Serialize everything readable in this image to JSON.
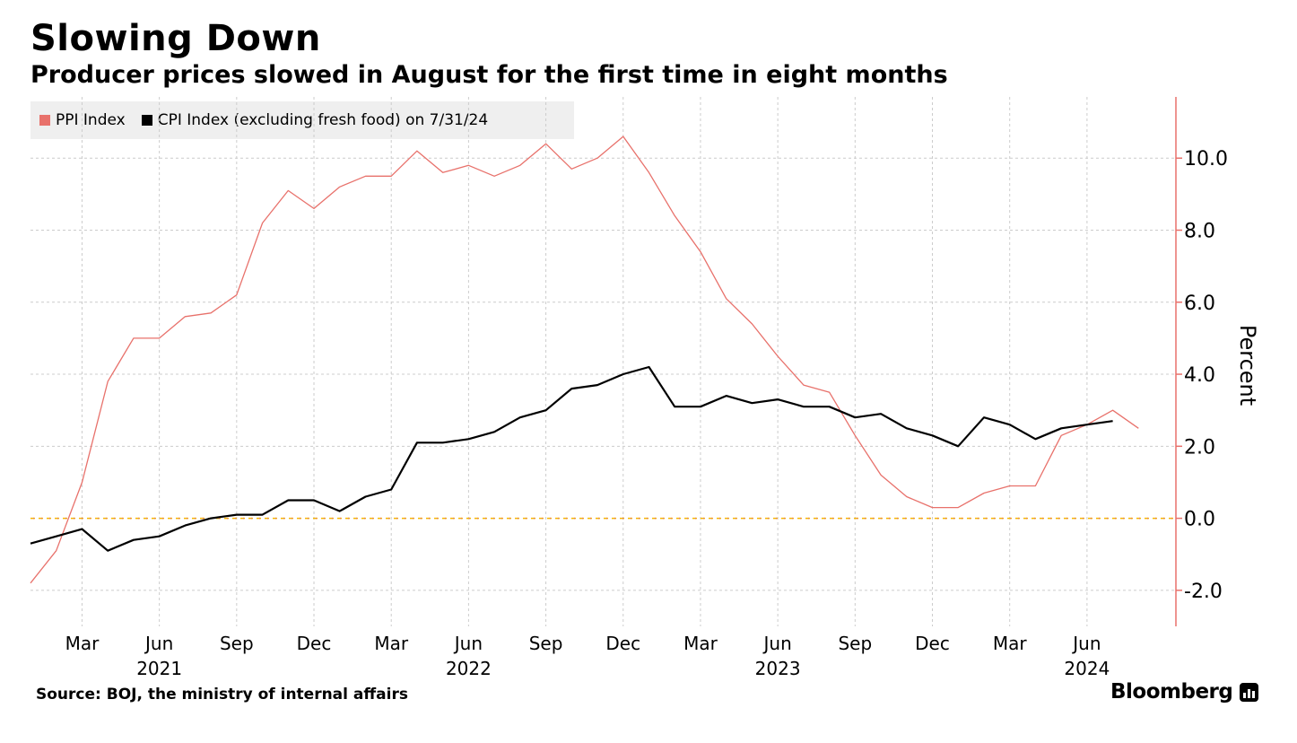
{
  "header": {
    "title": "Slowing Down",
    "subtitle": "Producer prices slowed in August for the first time in eight months"
  },
  "legend": {
    "items": [
      {
        "label": "PPI Index",
        "color": "#e8716b"
      },
      {
        "label": "CPI Index (excluding fresh food) on 7/31/24",
        "color": "#000000"
      }
    ]
  },
  "footer": {
    "source": "Source: BOJ, the ministry of internal affairs",
    "brand": "Bloomberg",
    "brand_icon": "bloomberg-terminal-icon"
  },
  "colors": {
    "ppi": "#e8716b",
    "cpi": "#000000",
    "axis": "#e8716b",
    "zero_line": "#f5b800",
    "grid": "#cccccc"
  },
  "chart_data": {
    "type": "line",
    "ylabel": "Percent",
    "ylim": [
      -3.0,
      11.7
    ],
    "yticks": [
      "10.0",
      "8.0",
      "6.0",
      "4.0",
      "2.0",
      "0.0",
      "-2.0"
    ],
    "ytick_values": [
      10,
      8,
      6,
      4,
      2,
      0,
      -2
    ],
    "y_axis_side": "right",
    "grid": true,
    "legend_position": "top-left",
    "x_start": "2021-01",
    "x_end": "2024-09",
    "x_tick_labels": [
      {
        "label": "Mar",
        "month": "2021-03"
      },
      {
        "label": "Jun",
        "month": "2021-06"
      },
      {
        "label": "Sep",
        "month": "2021-09"
      },
      {
        "label": "Dec",
        "month": "2021-12"
      },
      {
        "label": "Mar",
        "month": "2022-03"
      },
      {
        "label": "Jun",
        "month": "2022-06"
      },
      {
        "label": "Sep",
        "month": "2022-09"
      },
      {
        "label": "Dec",
        "month": "2022-12"
      },
      {
        "label": "Mar",
        "month": "2023-03"
      },
      {
        "label": "Jun",
        "month": "2023-06"
      },
      {
        "label": "Sep",
        "month": "2023-09"
      },
      {
        "label": "Dec",
        "month": "2023-12"
      },
      {
        "label": "Mar",
        "month": "2024-03"
      },
      {
        "label": "Jun",
        "month": "2024-06"
      }
    ],
    "year_labels": [
      {
        "label": "2021",
        "month": "2021-06"
      },
      {
        "label": "2022",
        "month": "2022-06"
      },
      {
        "label": "2023",
        "month": "2023-06"
      },
      {
        "label": "2024",
        "month": "2024-06"
      }
    ],
    "x": [
      "2021-01",
      "2021-02",
      "2021-03",
      "2021-04",
      "2021-05",
      "2021-06",
      "2021-07",
      "2021-08",
      "2021-09",
      "2021-10",
      "2021-11",
      "2021-12",
      "2022-01",
      "2022-02",
      "2022-03",
      "2022-04",
      "2022-05",
      "2022-06",
      "2022-07",
      "2022-08",
      "2022-09",
      "2022-10",
      "2022-11",
      "2022-12",
      "2023-01",
      "2023-02",
      "2023-03",
      "2023-04",
      "2023-05",
      "2023-06",
      "2023-07",
      "2023-08",
      "2023-09",
      "2023-10",
      "2023-11",
      "2023-12",
      "2024-01",
      "2024-02",
      "2024-03",
      "2024-04",
      "2024-05",
      "2024-06",
      "2024-07",
      "2024-08"
    ],
    "series": [
      {
        "name": "PPI Index",
        "color": "#e8716b",
        "values": [
          -1.8,
          -0.9,
          1.0,
          3.8,
          5.0,
          5.0,
          5.6,
          5.7,
          6.2,
          8.2,
          9.1,
          8.6,
          9.2,
          9.5,
          9.5,
          10.2,
          9.6,
          9.8,
          9.5,
          9.8,
          10.4,
          9.7,
          10.0,
          10.6,
          9.6,
          8.4,
          7.4,
          6.1,
          5.4,
          4.5,
          3.7,
          3.5,
          2.3,
          1.2,
          0.6,
          0.3,
          0.3,
          0.7,
          0.9,
          0.9,
          2.3,
          2.6,
          3.0,
          2.5
        ]
      },
      {
        "name": "CPI Index (excluding fresh food) on 7/31/24",
        "color": "#000000",
        "values": [
          -0.7,
          -0.5,
          -0.3,
          -0.9,
          -0.6,
          -0.5,
          -0.2,
          0.0,
          0.1,
          0.1,
          0.5,
          0.5,
          0.2,
          0.6,
          0.8,
          2.1,
          2.1,
          2.2,
          2.4,
          2.8,
          3.0,
          3.6,
          3.7,
          4.0,
          4.2,
          3.1,
          3.1,
          3.4,
          3.2,
          3.3,
          3.1,
          3.1,
          2.8,
          2.9,
          2.5,
          2.3,
          2.0,
          2.8,
          2.6,
          2.2,
          2.5,
          2.6,
          2.7,
          null
        ]
      }
    ]
  }
}
